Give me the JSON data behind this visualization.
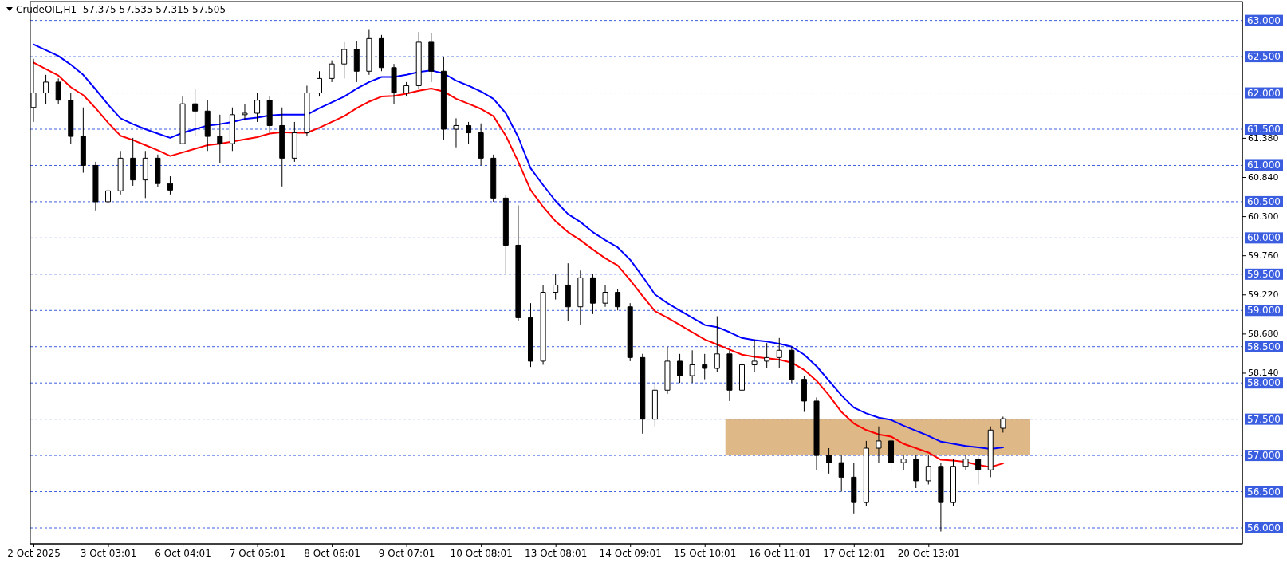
{
  "chart_data": {
    "type": "candlestick",
    "title": "CrudeOIL,H1  57.375 57.535 57.315 57.505",
    "categories": [
      "2 Oct 2025",
      null,
      null,
      null,
      null,
      null,
      "3 Oct 03:01",
      null,
      null,
      null,
      null,
      null,
      "6 Oct 04:01",
      null,
      null,
      null,
      null,
      null,
      "7 Oct 05:01",
      null,
      null,
      null,
      null,
      null,
      "8 Oct 06:01",
      null,
      null,
      null,
      null,
      null,
      "9 Oct 07:01",
      null,
      null,
      null,
      null,
      null,
      "10 Oct 08:01",
      null,
      null,
      null,
      null,
      null,
      "13 Oct 08:01",
      null,
      null,
      null,
      null,
      null,
      "14 Oct 09:01",
      null,
      null,
      null,
      null,
      null,
      "15 Oct 10:01",
      null,
      null,
      null,
      null,
      null,
      "16 Oct 11:01",
      null,
      null,
      null,
      null,
      null,
      "17 Oct 12:01",
      null,
      null,
      null,
      null,
      null,
      "20 Oct 13:01",
      null,
      null,
      null,
      null,
      null,
      null,
      null,
      null,
      null,
      null,
      null,
      null,
      null,
      null,
      null,
      null,
      null,
      null,
      null,
      null,
      null,
      null,
      null,
      null,
      null
    ],
    "ylim": [
      55.78,
      63.26
    ],
    "yticks": [
      {
        "value": 61.38,
        "label": "61.380"
      },
      {
        "value": 60.84,
        "label": "60.840"
      },
      {
        "value": 60.3,
        "label": "60.300"
      },
      {
        "value": 59.76,
        "label": "59.760"
      },
      {
        "value": 59.22,
        "label": "59.220"
      },
      {
        "value": 58.68,
        "label": "58.680"
      },
      {
        "value": 58.14,
        "label": "58.140"
      }
    ],
    "ohlc": [
      [
        61.8,
        62.47,
        61.6,
        62.0
      ],
      [
        62.0,
        62.25,
        61.85,
        62.15
      ],
      [
        62.15,
        62.2,
        61.85,
        61.9
      ],
      [
        61.9,
        62.0,
        61.3,
        61.4
      ],
      [
        61.4,
        61.8,
        60.9,
        61.0
      ],
      [
        61.0,
        61.05,
        60.38,
        60.5
      ],
      [
        60.5,
        60.75,
        60.45,
        60.65
      ],
      [
        60.65,
        61.2,
        60.6,
        61.1
      ],
      [
        61.1,
        61.38,
        60.72,
        60.8
      ],
      [
        60.8,
        61.2,
        60.55,
        61.1
      ],
      [
        61.1,
        61.15,
        60.7,
        60.75
      ],
      [
        60.75,
        60.85,
        60.6,
        60.66
      ],
      [
        61.3,
        61.95,
        61.3,
        61.85
      ],
      [
        61.85,
        62.05,
        61.4,
        61.75
      ],
      [
        61.75,
        61.9,
        61.2,
        61.4
      ],
      [
        61.4,
        61.7,
        61.03,
        61.3
      ],
      [
        61.3,
        61.8,
        61.2,
        61.7
      ],
      [
        61.7,
        61.85,
        61.62,
        61.72
      ],
      [
        61.72,
        62.0,
        61.6,
        61.9
      ],
      [
        61.9,
        61.95,
        61.45,
        61.55
      ],
      [
        61.55,
        61.8,
        60.71,
        61.1
      ],
      [
        61.1,
        61.6,
        61.05,
        61.45
      ],
      [
        61.45,
        62.1,
        61.4,
        62.0
      ],
      [
        62.0,
        62.3,
        61.95,
        62.2
      ],
      [
        62.2,
        62.45,
        62.15,
        62.4
      ],
      [
        62.4,
        62.7,
        62.2,
        62.6
      ],
      [
        62.6,
        62.72,
        62.15,
        62.3
      ],
      [
        62.3,
        62.88,
        62.25,
        62.75
      ],
      [
        62.75,
        62.8,
        62.3,
        62.35
      ],
      [
        62.35,
        62.4,
        61.85,
        62.0
      ],
      [
        62.0,
        62.15,
        61.95,
        62.1
      ],
      [
        62.1,
        62.84,
        62.05,
        62.7
      ],
      [
        62.7,
        62.82,
        62.15,
        62.3
      ],
      [
        62.3,
        62.5,
        61.35,
        61.5
      ],
      [
        61.5,
        61.65,
        61.25,
        61.55
      ],
      [
        61.55,
        61.6,
        61.3,
        61.45
      ],
      [
        61.45,
        61.58,
        61.0,
        61.1
      ],
      [
        61.1,
        61.15,
        60.5,
        60.55
      ],
      [
        60.55,
        60.6,
        59.5,
        59.9
      ],
      [
        59.9,
        60.45,
        58.85,
        58.9
      ],
      [
        58.9,
        59.1,
        58.22,
        58.3
      ],
      [
        58.3,
        59.35,
        58.25,
        59.25
      ],
      [
        59.25,
        59.5,
        59.15,
        59.35
      ],
      [
        59.35,
        59.65,
        58.85,
        59.05
      ],
      [
        59.05,
        59.55,
        58.8,
        59.45
      ],
      [
        59.45,
        59.5,
        58.95,
        59.1
      ],
      [
        59.1,
        59.35,
        59.05,
        59.25
      ],
      [
        59.25,
        59.3,
        59.0,
        59.05
      ],
      [
        59.05,
        59.1,
        58.3,
        58.35
      ],
      [
        58.35,
        58.4,
        57.3,
        57.5
      ],
      [
        57.5,
        58.0,
        57.4,
        57.9
      ],
      [
        57.9,
        58.5,
        57.85,
        58.3
      ],
      [
        58.3,
        58.4,
        58.0,
        58.1
      ],
      [
        58.1,
        58.45,
        58.0,
        58.25
      ],
      [
        58.25,
        58.4,
        58.05,
        58.2
      ],
      [
        58.2,
        58.92,
        58.15,
        58.4
      ],
      [
        58.4,
        58.45,
        57.75,
        57.9
      ],
      [
        57.9,
        58.35,
        57.85,
        58.25
      ],
      [
        58.25,
        58.6,
        58.15,
        58.3
      ],
      [
        58.3,
        58.55,
        58.2,
        58.35
      ],
      [
        58.35,
        58.62,
        58.2,
        58.45
      ],
      [
        58.45,
        58.5,
        58.0,
        58.05
      ],
      [
        58.05,
        58.1,
        57.6,
        57.75
      ],
      [
        57.75,
        57.8,
        56.8,
        57.0
      ],
      [
        57.0,
        57.1,
        56.75,
        56.9
      ],
      [
        56.9,
        57.0,
        56.5,
        56.7
      ],
      [
        56.7,
        56.9,
        56.2,
        56.35
      ],
      [
        56.35,
        57.2,
        56.3,
        57.1
      ],
      [
        57.1,
        57.4,
        56.9,
        57.2
      ],
      [
        57.2,
        57.25,
        56.8,
        56.9
      ],
      [
        56.9,
        57.0,
        56.8,
        56.95
      ],
      [
        56.95,
        57.0,
        56.55,
        56.65
      ],
      [
        56.65,
        57.0,
        56.6,
        56.85
      ],
      [
        56.85,
        56.9,
        55.95,
        56.35
      ],
      [
        56.35,
        56.95,
        56.3,
        56.85
      ],
      [
        56.85,
        57.0,
        56.8,
        56.95
      ],
      [
        56.95,
        56.98,
        56.6,
        56.8
      ],
      [
        56.8,
        57.4,
        56.7,
        57.35
      ],
      [
        57.375,
        57.535,
        57.315,
        57.505
      ],
      null,
      null,
      null,
      null,
      null,
      null,
      null,
      null,
      null,
      null,
      null,
      null,
      null,
      null,
      null,
      null,
      null,
      null,
      null
    ],
    "series": [
      {
        "type": "line",
        "color": "#0000ff",
        "values": [
          62.67,
          62.59,
          62.51,
          62.39,
          62.25,
          62.05,
          61.84,
          61.65,
          61.57,
          61.5,
          61.44,
          61.38,
          61.45,
          61.5,
          61.55,
          61.57,
          61.6,
          61.64,
          61.66,
          61.69,
          61.7,
          61.7,
          61.7,
          61.79,
          61.87,
          61.95,
          62.06,
          62.15,
          62.22,
          62.22,
          62.25,
          62.29,
          62.31,
          62.27,
          62.17,
          62.1,
          62.02,
          61.92,
          61.72,
          61.39,
          60.96,
          60.73,
          60.51,
          60.33,
          60.22,
          60.08,
          59.97,
          59.87,
          59.7,
          59.47,
          59.22,
          59.1,
          59.0,
          58.9,
          58.8,
          58.77,
          58.7,
          58.62,
          58.59,
          58.57,
          58.54,
          58.5,
          58.39,
          58.23,
          58.03,
          57.83,
          57.66,
          57.58,
          57.52,
          57.49,
          57.41,
          57.34,
          57.27,
          57.19,
          57.16,
          57.13,
          57.11,
          57.09,
          57.11,
          null,
          null,
          null,
          null,
          null,
          null,
          null,
          null,
          null,
          null,
          null,
          null,
          null,
          null,
          null,
          null,
          null,
          null,
          null
        ]
      },
      {
        "type": "line",
        "color": "#ff0000",
        "values": [
          62.42,
          62.33,
          62.24,
          62.08,
          61.97,
          61.79,
          61.59,
          61.41,
          61.35,
          61.28,
          61.21,
          61.13,
          61.18,
          61.23,
          61.28,
          61.3,
          61.33,
          61.36,
          61.39,
          61.44,
          61.46,
          61.45,
          61.45,
          61.52,
          61.6,
          61.68,
          61.79,
          61.88,
          61.95,
          61.96,
          61.99,
          62.03,
          62.06,
          62.02,
          61.92,
          61.85,
          61.78,
          61.68,
          61.41,
          61.05,
          60.66,
          60.43,
          60.23,
          60.08,
          59.97,
          59.84,
          59.72,
          59.62,
          59.42,
          59.2,
          58.99,
          58.9,
          58.8,
          58.7,
          58.6,
          58.53,
          58.46,
          58.39,
          58.36,
          58.34,
          58.32,
          58.28,
          58.18,
          58.03,
          57.83,
          57.6,
          57.44,
          57.35,
          57.29,
          57.26,
          57.16,
          57.1,
          57.04,
          56.94,
          56.93,
          56.91,
          56.87,
          56.84,
          56.89,
          null,
          null,
          null,
          null,
          null,
          null,
          null,
          null,
          null,
          null,
          null,
          null,
          null,
          null,
          null,
          null,
          null,
          null,
          null
        ]
      }
    ],
    "ref_lines": [
      {
        "axis": "y",
        "value": 63,
        "label": "63.000",
        "color": "#3b5ee0",
        "line_style": "dashed"
      },
      {
        "axis": "y",
        "value": 62.5,
        "label": "62.500",
        "color": "#3b5ee0",
        "line_style": "dashed"
      },
      {
        "axis": "y",
        "value": 62,
        "label": "62.000",
        "color": "#3b5ee0",
        "line_style": "dashed"
      },
      {
        "axis": "y",
        "value": 61.5,
        "label": "61.500",
        "color": "#3b5ee0",
        "line_style": "dashed"
      },
      {
        "axis": "y",
        "value": 61,
        "label": "61.000",
        "color": "#3b5ee0",
        "line_style": "dashed"
      },
      {
        "axis": "y",
        "value": 60.5,
        "label": "60.500",
        "color": "#3b5ee0",
        "line_style": "dashed"
      },
      {
        "axis": "y",
        "value": 60,
        "label": "60.000",
        "color": "#3b5ee0",
        "line_style": "dashed"
      },
      {
        "axis": "y",
        "value": 59.5,
        "label": "59.500",
        "color": "#3b5ee0",
        "line_style": "dashed"
      },
      {
        "axis": "y",
        "value": 59,
        "label": "59.000",
        "color": "#3b5ee0",
        "line_style": "dashed"
      },
      {
        "axis": "y",
        "value": 58.5,
        "label": "58.500",
        "color": "#3b5ee0",
        "line_style": "dashed"
      },
      {
        "axis": "y",
        "value": 58,
        "label": "58.000",
        "color": "#3b5ee0",
        "line_style": "dashed"
      },
      {
        "axis": "y",
        "value": 57.5,
        "label": "57.500",
        "color": "#3b5ee0",
        "line_style": "dashed"
      },
      {
        "axis": "y",
        "value": 57,
        "label": "57.000",
        "color": "#3b5ee0",
        "line_style": "dashed"
      },
      {
        "axis": "y",
        "value": 56.5,
        "label": "56.500",
        "color": "#3b5ee0",
        "line_style": "dashed"
      },
      {
        "axis": "y",
        "value": 56,
        "label": "56.000",
        "color": "#3b5ee0",
        "line_style": "dashed"
      }
    ],
    "bands": [
      {
        "axis": "y",
        "from": 57,
        "to": 57.5,
        "color": "#deb887"
      }
    ]
  }
}
